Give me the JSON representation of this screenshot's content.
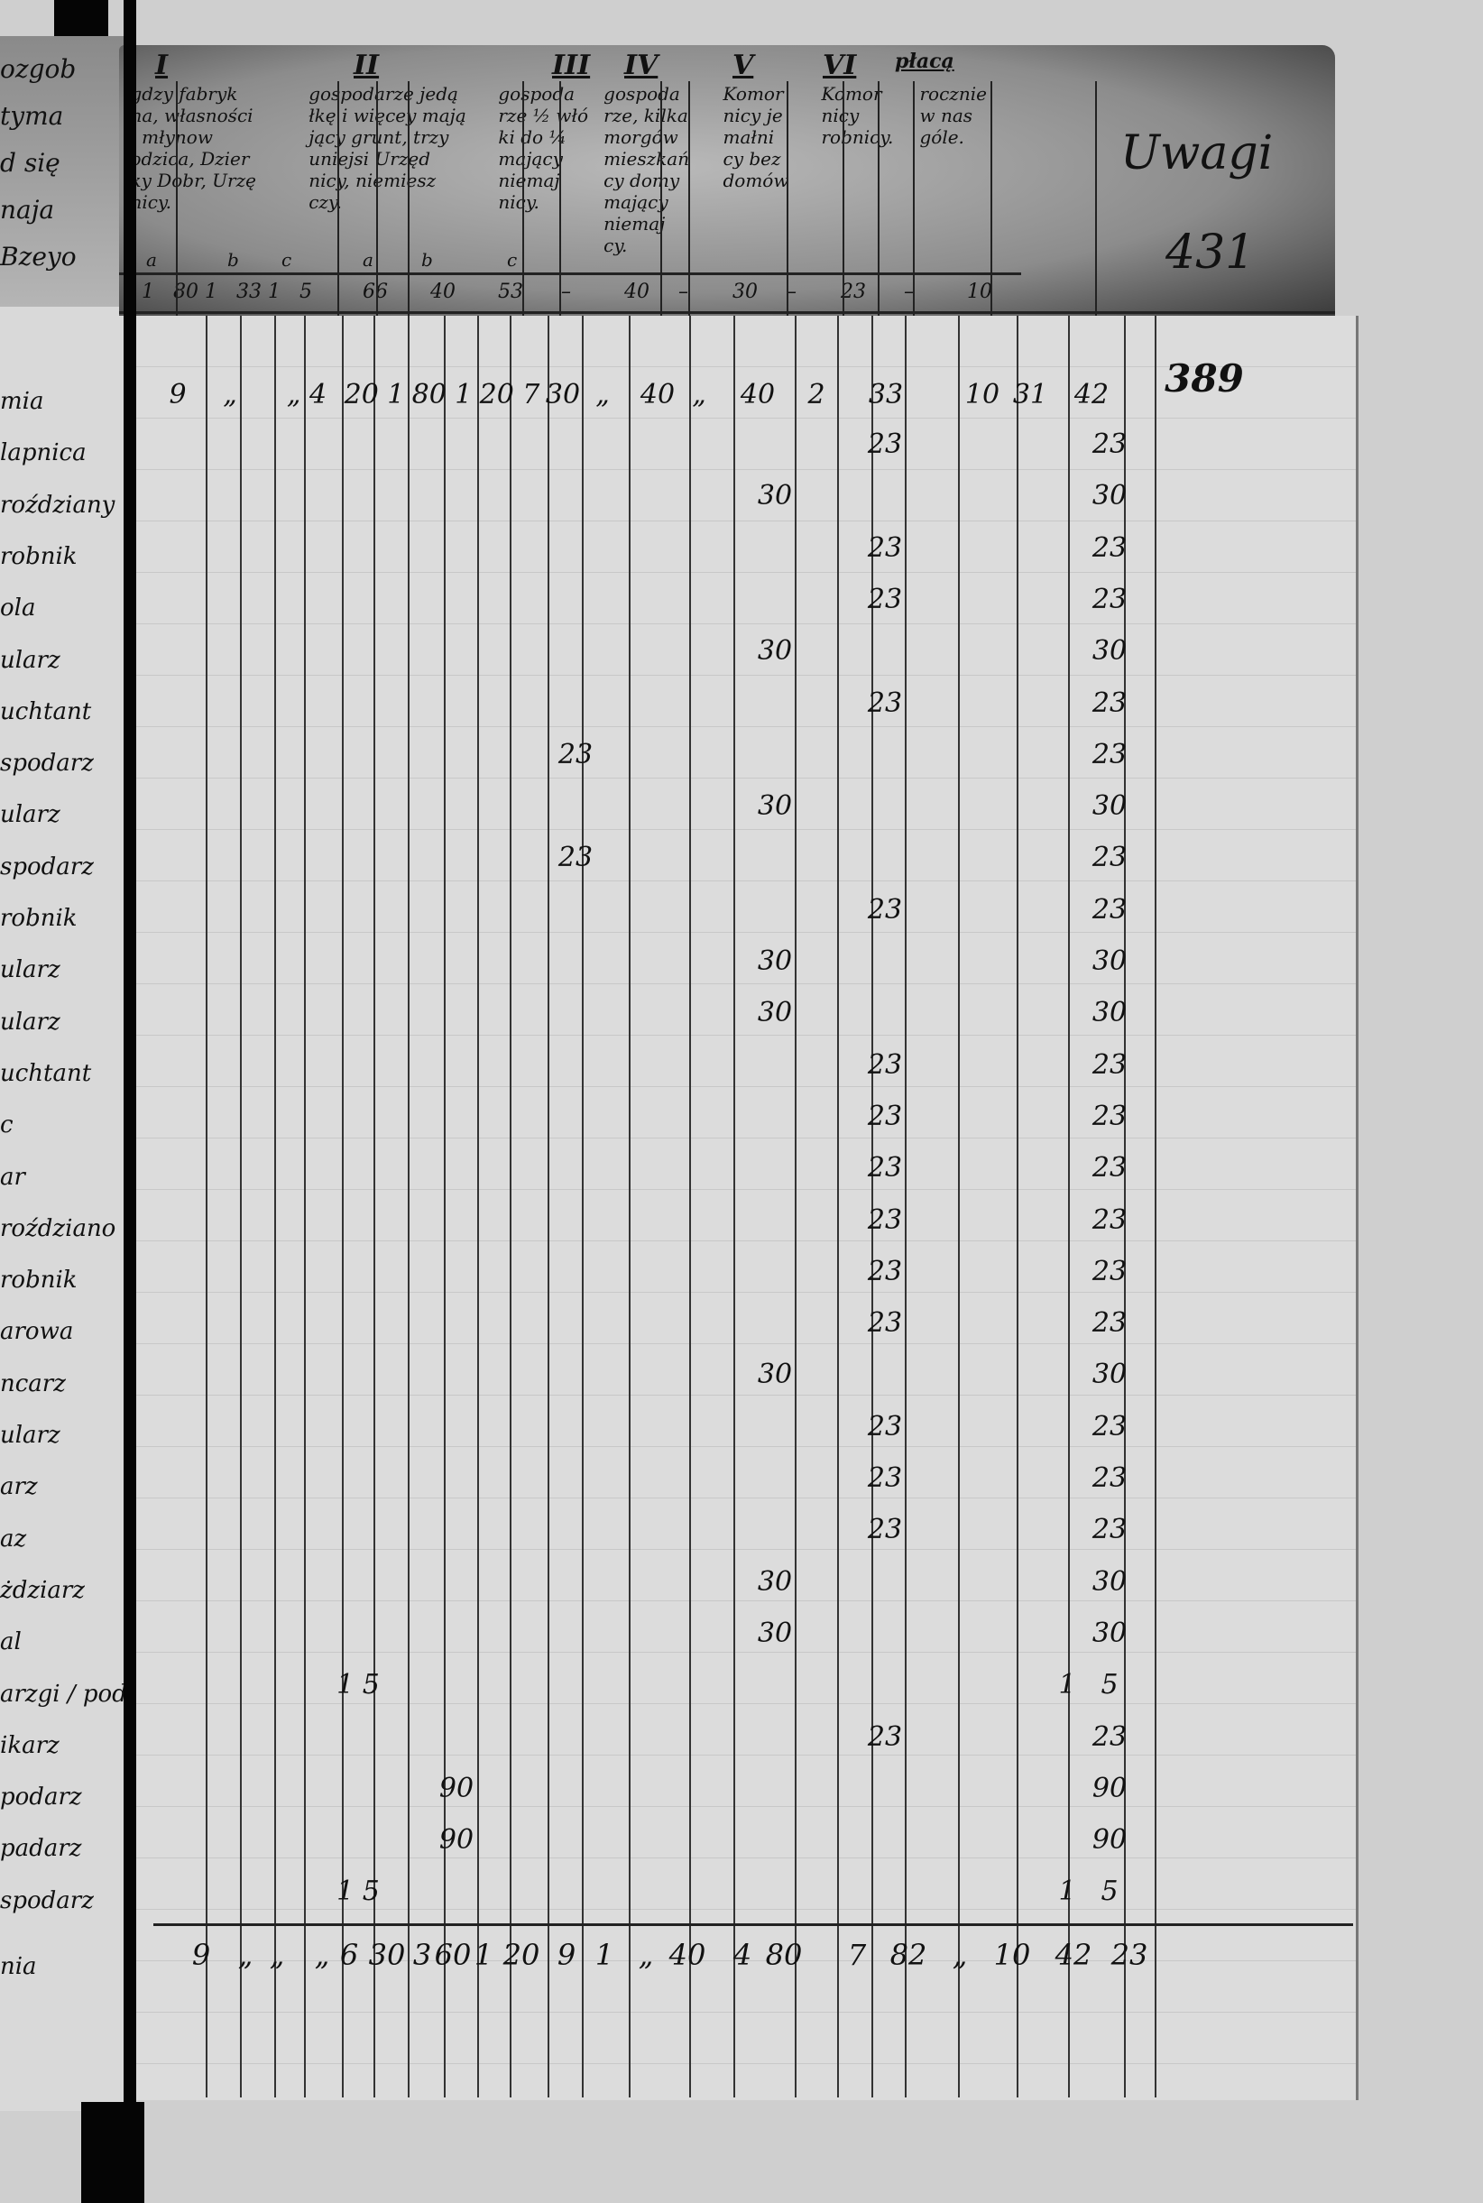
{
  "left_page": {
    "header_fragments": [
      "ozgob",
      "tyma",
      "d się",
      "naja",
      "Bzeyo"
    ],
    "names": [
      "mia",
      "lapnica",
      "roździany",
      "robnik",
      "ola",
      "ularz",
      "uchtant",
      "spodarz",
      "ularz",
      "spodarz",
      "robnik",
      "ularz",
      "ularz",
      "uchtant",
      "c",
      "ar",
      "roździano",
      "robnik",
      "arowa",
      "ncarz",
      "ularz",
      "arz",
      "az",
      "żdziarz",
      "al",
      "arzgi / podarz",
      "ikarz",
      "podarz",
      "padarz",
      "spodarz"
    ],
    "total_label": "nia"
  },
  "header": {
    "roman_numerals": [
      "I",
      "II",
      "III",
      "IV",
      "V",
      "VI",
      "płacą"
    ],
    "col_I_text": "gdzy fabryk\nna, własności\n, młynow\nodzica, Dzier\nky Dobr, Urzę\nnicy.",
    "col_II_text": "gospodarze jedą\nłkę i więcey mają\njący grunt, trzy\nuniejsi Urzęd\nnicy, niemiesz\nczy.",
    "col_III_text": "gospoda\nrze ½ włó\nki do ¼\nmający\nniemaj\nnicy.",
    "col_IV_text": "gospoda\nrze, kilka\nmorgów\nmieszkań\ncy domy\nmający\nniemaj\ncy.",
    "col_V_text": "Komor\nnicy je\nmałni\ncy bez\ndomów",
    "col_VI_text": "Komor\nnicy\nrobnicy.",
    "col_placa_text": "rocznie\nw nas\ngóle.",
    "subcolumn_letters": [
      "a",
      "b",
      "c",
      "a",
      "b",
      "c"
    ],
    "uwagi": "Uwagi",
    "folio_number": "431",
    "rates": [
      "1",
      "80",
      "1",
      "33",
      "1",
      "5",
      "66",
      "40",
      "53",
      "–",
      "40",
      "–",
      "30",
      "–",
      "23",
      "–",
      "10"
    ]
  },
  "page_number": "389",
  "rows": [
    [
      {
        "col": "r1_1",
        "v": "9"
      },
      {
        "col": "r1_2",
        "v": "„"
      },
      {
        "col": "r1_3",
        "v": "„ 4"
      },
      {
        "col": "r1_4",
        "v": "20 1"
      },
      {
        "col": "r1_5",
        "v": "80 1"
      },
      {
        "col": "r1_6",
        "v": "20 7"
      },
      {
        "col": "r1_7",
        "v": "30"
      },
      {
        "col": "r1_8",
        "v": "„"
      },
      {
        "col": "r1_9",
        "v": "40"
      },
      {
        "col": "r1_10",
        "v": "„"
      },
      {
        "col": "r1_11",
        "v": "40"
      },
      {
        "col": "r1_12",
        "v": "2"
      },
      {
        "col": "r1_13",
        "v": "33"
      },
      {
        "col": "r1_14",
        "v": "10"
      },
      {
        "col": "r1_15",
        "v": "31"
      },
      {
        "col": "r1_16",
        "v": "42"
      }
    ],
    [
      {
        "col": "VI",
        "v": "23"
      },
      {
        "col": "tot",
        "v": "23"
      }
    ],
    [
      {
        "col": "V",
        "v": "30"
      },
      {
        "col": "tot",
        "v": "30"
      }
    ],
    [
      {
        "col": "VI",
        "v": "23"
      },
      {
        "col": "tot",
        "v": "23"
      }
    ],
    [
      {
        "col": "VI",
        "v": "23"
      },
      {
        "col": "tot",
        "v": "23"
      }
    ],
    [
      {
        "col": "V",
        "v": "30"
      },
      {
        "col": "tot",
        "v": "30"
      }
    ],
    [
      {
        "col": "VI",
        "v": "23"
      },
      {
        "col": "tot",
        "v": "23"
      }
    ],
    [
      {
        "col": "III",
        "v": "23"
      },
      {
        "col": "tot",
        "v": "23"
      }
    ],
    [
      {
        "col": "V",
        "v": "30"
      },
      {
        "col": "tot",
        "v": "30"
      }
    ],
    [
      {
        "col": "III",
        "v": "23"
      },
      {
        "col": "tot",
        "v": "23"
      }
    ],
    [
      {
        "col": "VI",
        "v": "23"
      },
      {
        "col": "tot",
        "v": "23"
      }
    ],
    [
      {
        "col": "V",
        "v": "30"
      },
      {
        "col": "tot",
        "v": "30"
      }
    ],
    [
      {
        "col": "V",
        "v": "30"
      },
      {
        "col": "tot",
        "v": "30"
      }
    ],
    [
      {
        "col": "VI",
        "v": "23"
      },
      {
        "col": "tot",
        "v": "23"
      }
    ],
    [
      {
        "col": "VI",
        "v": "23"
      },
      {
        "col": "tot",
        "v": "23"
      }
    ],
    [
      {
        "col": "VI",
        "v": "23"
      },
      {
        "col": "tot",
        "v": "23"
      }
    ],
    [
      {
        "col": "VI",
        "v": "23"
      },
      {
        "col": "tot",
        "v": "23"
      }
    ],
    [
      {
        "col": "VI",
        "v": "23"
      },
      {
        "col": "tot",
        "v": "23"
      }
    ],
    [
      {
        "col": "VI",
        "v": "23"
      },
      {
        "col": "tot",
        "v": "23"
      }
    ],
    [
      {
        "col": "V",
        "v": "30"
      },
      {
        "col": "tot",
        "v": "30"
      }
    ],
    [
      {
        "col": "VI",
        "v": "23"
      },
      {
        "col": "tot",
        "v": "23"
      }
    ],
    [
      {
        "col": "VI",
        "v": "23"
      },
      {
        "col": "tot",
        "v": "23"
      }
    ],
    [
      {
        "col": "VI",
        "v": "23"
      },
      {
        "col": "tot",
        "v": "23"
      }
    ],
    [
      {
        "col": "V",
        "v": "30"
      },
      {
        "col": "tot",
        "v": "30"
      }
    ],
    [
      {
        "col": "V",
        "v": "30"
      },
      {
        "col": "tot",
        "v": "30"
      }
    ],
    [
      {
        "col": "IIa",
        "v": "1 5"
      },
      {
        "col": "tot1",
        "v": "1"
      },
      {
        "col": "tot",
        "v": "5"
      }
    ],
    [
      {
        "col": "VI",
        "v": "23"
      },
      {
        "col": "tot",
        "v": "23"
      }
    ],
    [
      {
        "col": "IIb",
        "v": "90"
      },
      {
        "col": "tot",
        "v": "90"
      }
    ],
    [
      {
        "col": "IIb",
        "v": "90"
      },
      {
        "col": "tot",
        "v": "90"
      }
    ],
    [
      {
        "col": "IIa",
        "v": "1 5"
      },
      {
        "col": "tot1",
        "v": "1"
      },
      {
        "col": "tot",
        "v": "5"
      }
    ]
  ],
  "totals": [
    "9",
    "„",
    "„",
    "„",
    "6",
    "30",
    "3",
    "60",
    "1",
    "20",
    "9",
    "1",
    "„",
    "40",
    "4",
    "80",
    "7",
    "82",
    "„",
    "10",
    "42",
    "23"
  ]
}
